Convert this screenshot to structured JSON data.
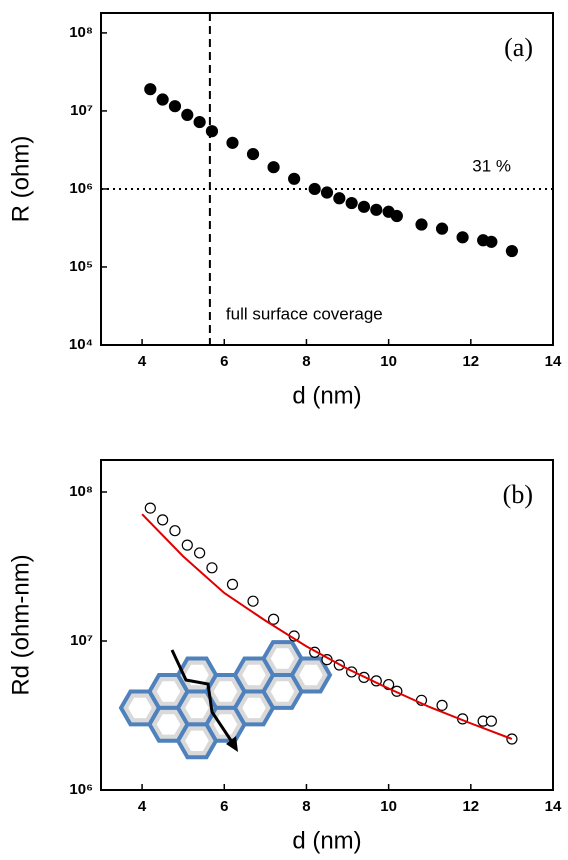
{
  "chart_data": [
    {
      "type": "scatter",
      "panel_label": "(a)",
      "xlabel": "d (nm)",
      "ylabel": "R (ohm)",
      "xlim": [
        3,
        14
      ],
      "xticks": [
        4,
        6,
        8,
        10,
        12,
        14
      ],
      "ylim": [
        10000,
        180000000
      ],
      "log_y": true,
      "yticks": [
        {
          "value": 10000,
          "label": "10⁴"
        },
        {
          "value": 100000,
          "label": "10⁵"
        },
        {
          "value": 1000000,
          "label": "10⁶"
        },
        {
          "value": 10000000,
          "label": "10⁷"
        },
        {
          "value": 100000000,
          "label": "10⁸"
        }
      ],
      "vline": 5.65,
      "hline": 1000000,
      "annotations": [
        "31 %",
        "full surface coverage"
      ],
      "series": [
        {
          "color": "#000000",
          "marker": "filled",
          "x": [
            4.2,
            4.5,
            4.8,
            5.1,
            5.4,
            5.7,
            6.2,
            6.7,
            7.2,
            7.7,
            8.2,
            8.5,
            8.8,
            9.1,
            9.4,
            9.7,
            10.0,
            10.2,
            10.8,
            11.3,
            11.8,
            12.3,
            12.5,
            13.0
          ],
          "values": [
            19000000,
            14000000,
            11500000,
            8900000,
            7200000,
            5500000,
            3900000,
            2800000,
            1900000,
            1350000,
            1000000,
            900000,
            760000,
            660000,
            590000,
            540000,
            510000,
            450000,
            350000,
            310000,
            240000,
            220000,
            210000,
            160000
          ]
        }
      ]
    },
    {
      "type": "scatter",
      "panel_label": "(b)",
      "xlabel": "d (nm)",
      "ylabel": "Rd (ohm-nm)",
      "xlim": [
        3,
        14
      ],
      "xticks": [
        4,
        6,
        8,
        10,
        12,
        14
      ],
      "ylim": [
        1000000,
        164000000
      ],
      "log_y": true,
      "yticks": [
        {
          "value": 1000000,
          "label": "10⁶"
        },
        {
          "value": 10000000,
          "label": "10⁷"
        },
        {
          "value": 100000000,
          "label": "10⁸"
        }
      ],
      "series": [
        {
          "color": "#000000",
          "marker": "open",
          "x": [
            4.2,
            4.5,
            4.8,
            5.1,
            5.4,
            5.7,
            6.2,
            6.7,
            7.2,
            7.7,
            8.2,
            8.5,
            8.8,
            9.1,
            9.4,
            9.7,
            10.0,
            10.2,
            10.8,
            11.3,
            11.8,
            12.3,
            12.5,
            13.0
          ],
          "values": [
            78000000,
            65000000,
            55000000,
            44000000,
            39000000,
            31000000,
            24000000,
            18500000,
            14000000,
            10800000,
            8400000,
            7500000,
            6900000,
            6200000,
            5700000,
            5400000,
            5100000,
            4600000,
            4000000,
            3700000,
            3000000,
            2900000,
            2900000,
            2200000
          ]
        },
        {
          "color": "#e00000",
          "marker": "line",
          "x": [
            4,
            5,
            6,
            7,
            8,
            9,
            10,
            11,
            12,
            13
          ],
          "values": [
            71000000,
            37000000,
            21000000,
            13700000,
            9200000,
            6500000,
            4800000,
            3600000,
            2800000,
            2200000
          ]
        }
      ]
    }
  ]
}
